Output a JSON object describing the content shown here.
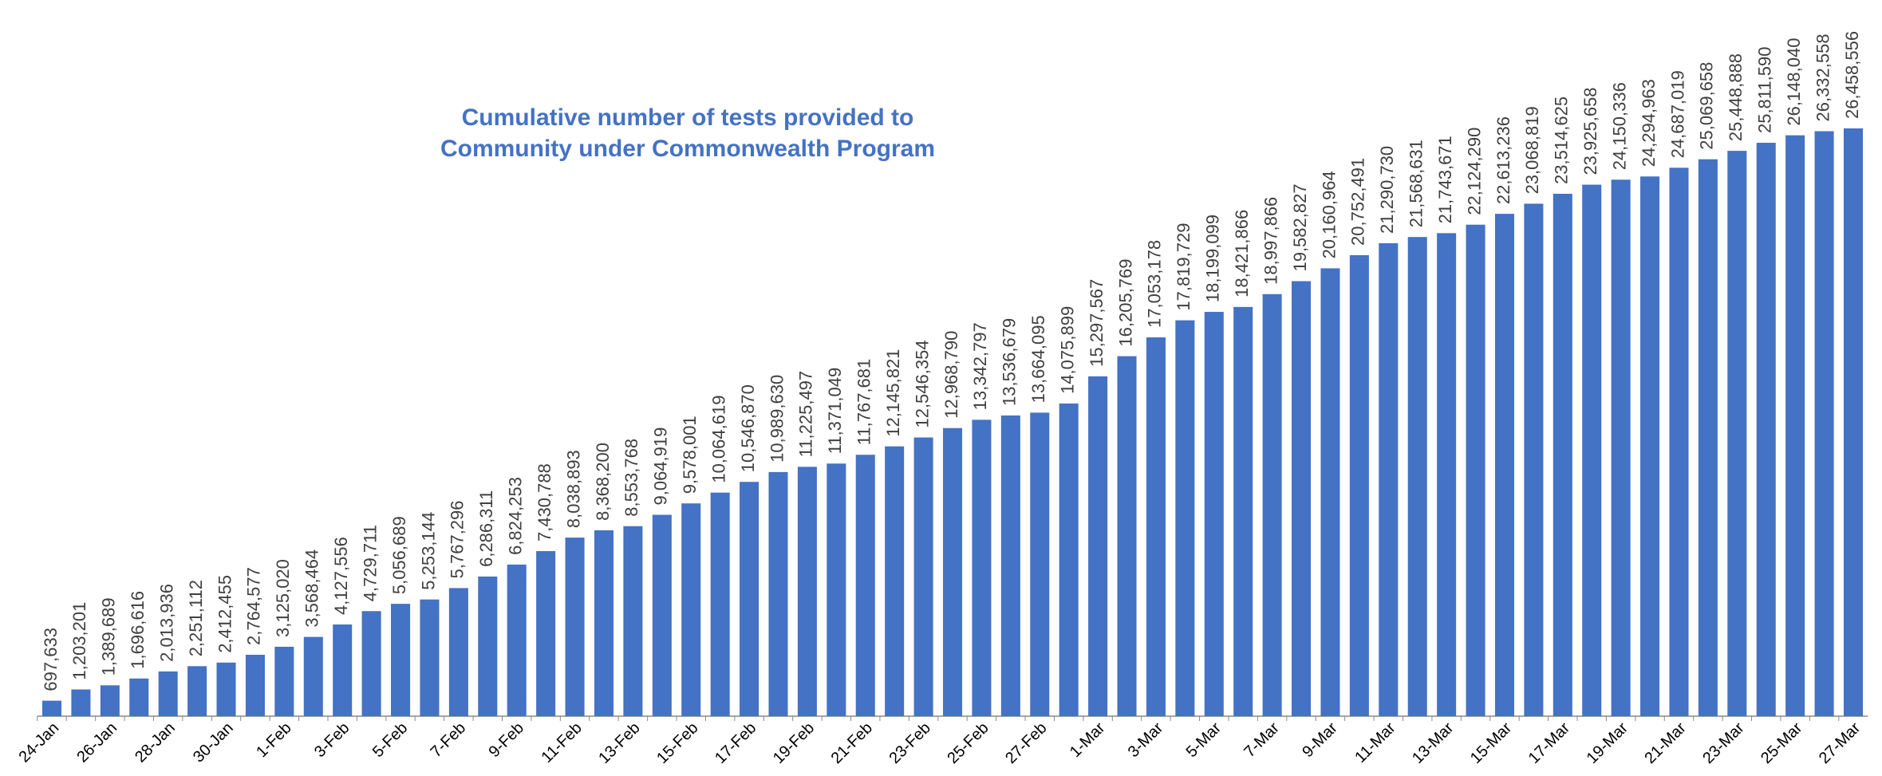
{
  "chart_data": {
    "type": "bar",
    "title": [
      "Cumulative number of tests provided to",
      "Community under Commonwealth Program"
    ],
    "color": "#4472c4",
    "categories": [
      "24-Jan",
      null,
      "26-Jan",
      null,
      "28-Jan",
      null,
      "30-Jan",
      null,
      "1-Feb",
      null,
      "3-Feb",
      null,
      "5-Feb",
      null,
      "7-Feb",
      null,
      "9-Feb",
      null,
      "11-Feb",
      null,
      "13-Feb",
      null,
      "15-Feb",
      null,
      "17-Feb",
      null,
      "19-Feb",
      null,
      "21-Feb",
      null,
      "23-Feb",
      null,
      "25-Feb",
      null,
      "27-Feb",
      null,
      "1-Mar",
      null,
      "3-Mar",
      null,
      "5-Mar",
      null,
      "7-Mar",
      null,
      "9-Mar",
      null,
      "11-Mar",
      null,
      "13-Mar",
      null,
      "15-Mar",
      null,
      "17-Mar",
      null,
      "19-Mar",
      null,
      "21-Mar",
      null,
      "23-Mar",
      null,
      "25-Mar",
      null,
      "27-Mar"
    ],
    "values": [
      697633,
      1203201,
      1389689,
      1696616,
      2013936,
      2251112,
      2412455,
      2764577,
      3125020,
      3568464,
      4127556,
      4729711,
      5056689,
      5253144,
      5767296,
      6286311,
      6824253,
      7430788,
      8038893,
      8368200,
      8553768,
      9064919,
      9578001,
      10064619,
      10546870,
      10989630,
      11225497,
      11371049,
      11767681,
      12145821,
      12546354,
      12968790,
      13342797,
      13536679,
      13664095,
      14075899,
      15297567,
      16205769,
      17053178,
      17819729,
      18199099,
      18421866,
      18997866,
      19582827,
      20160964,
      20752491,
      21290730,
      21568631,
      21743671,
      22124290,
      22613236,
      23068819,
      23514625,
      23925658,
      24150336,
      24294963,
      24687019,
      25069658,
      25448888,
      25811590,
      26148040,
      26332558,
      26458556
    ],
    "value_labels": [
      "697,633",
      "1,203,201",
      "1,389,689",
      "1,696,616",
      "2,013,936",
      "2,251,112",
      "2,412,455",
      "2,764,577",
      "3,125,020",
      "3,568,464",
      "4,127,556",
      "4,729,711",
      "5,056,689",
      "5,253,144",
      "5,767,296",
      "6,286,311",
      "6,824,253",
      "7,430,788",
      "8,038,893",
      "8,368,200",
      "8,553,768",
      "9,064,919",
      "9,578,001",
      "10,064,619",
      "10,546,870",
      "10,989,630",
      "11,225,497",
      "11,371,049",
      "11,767,681",
      "12,145,821",
      "12,546,354",
      "12,968,790",
      "13,342,797",
      "13,536,679",
      "13,664,095",
      "14,075,899",
      "15,297,567",
      "16,205,769",
      "17,053,178",
      "17,819,729",
      "18,199,099",
      "18,421,866",
      "18,997,866",
      "19,582,827",
      "20,160,964",
      "20,752,491",
      "21,290,730",
      "21,568,631",
      "21,743,671",
      "22,124,290",
      "22,613,236",
      "23,068,819",
      "23,514,625",
      "23,925,658",
      "24,150,336",
      "24,294,963",
      "24,687,019",
      "25,069,658",
      "25,448,888",
      "25,811,590",
      "26,148,040",
      "26,332,558",
      "26,458,556"
    ]
  }
}
